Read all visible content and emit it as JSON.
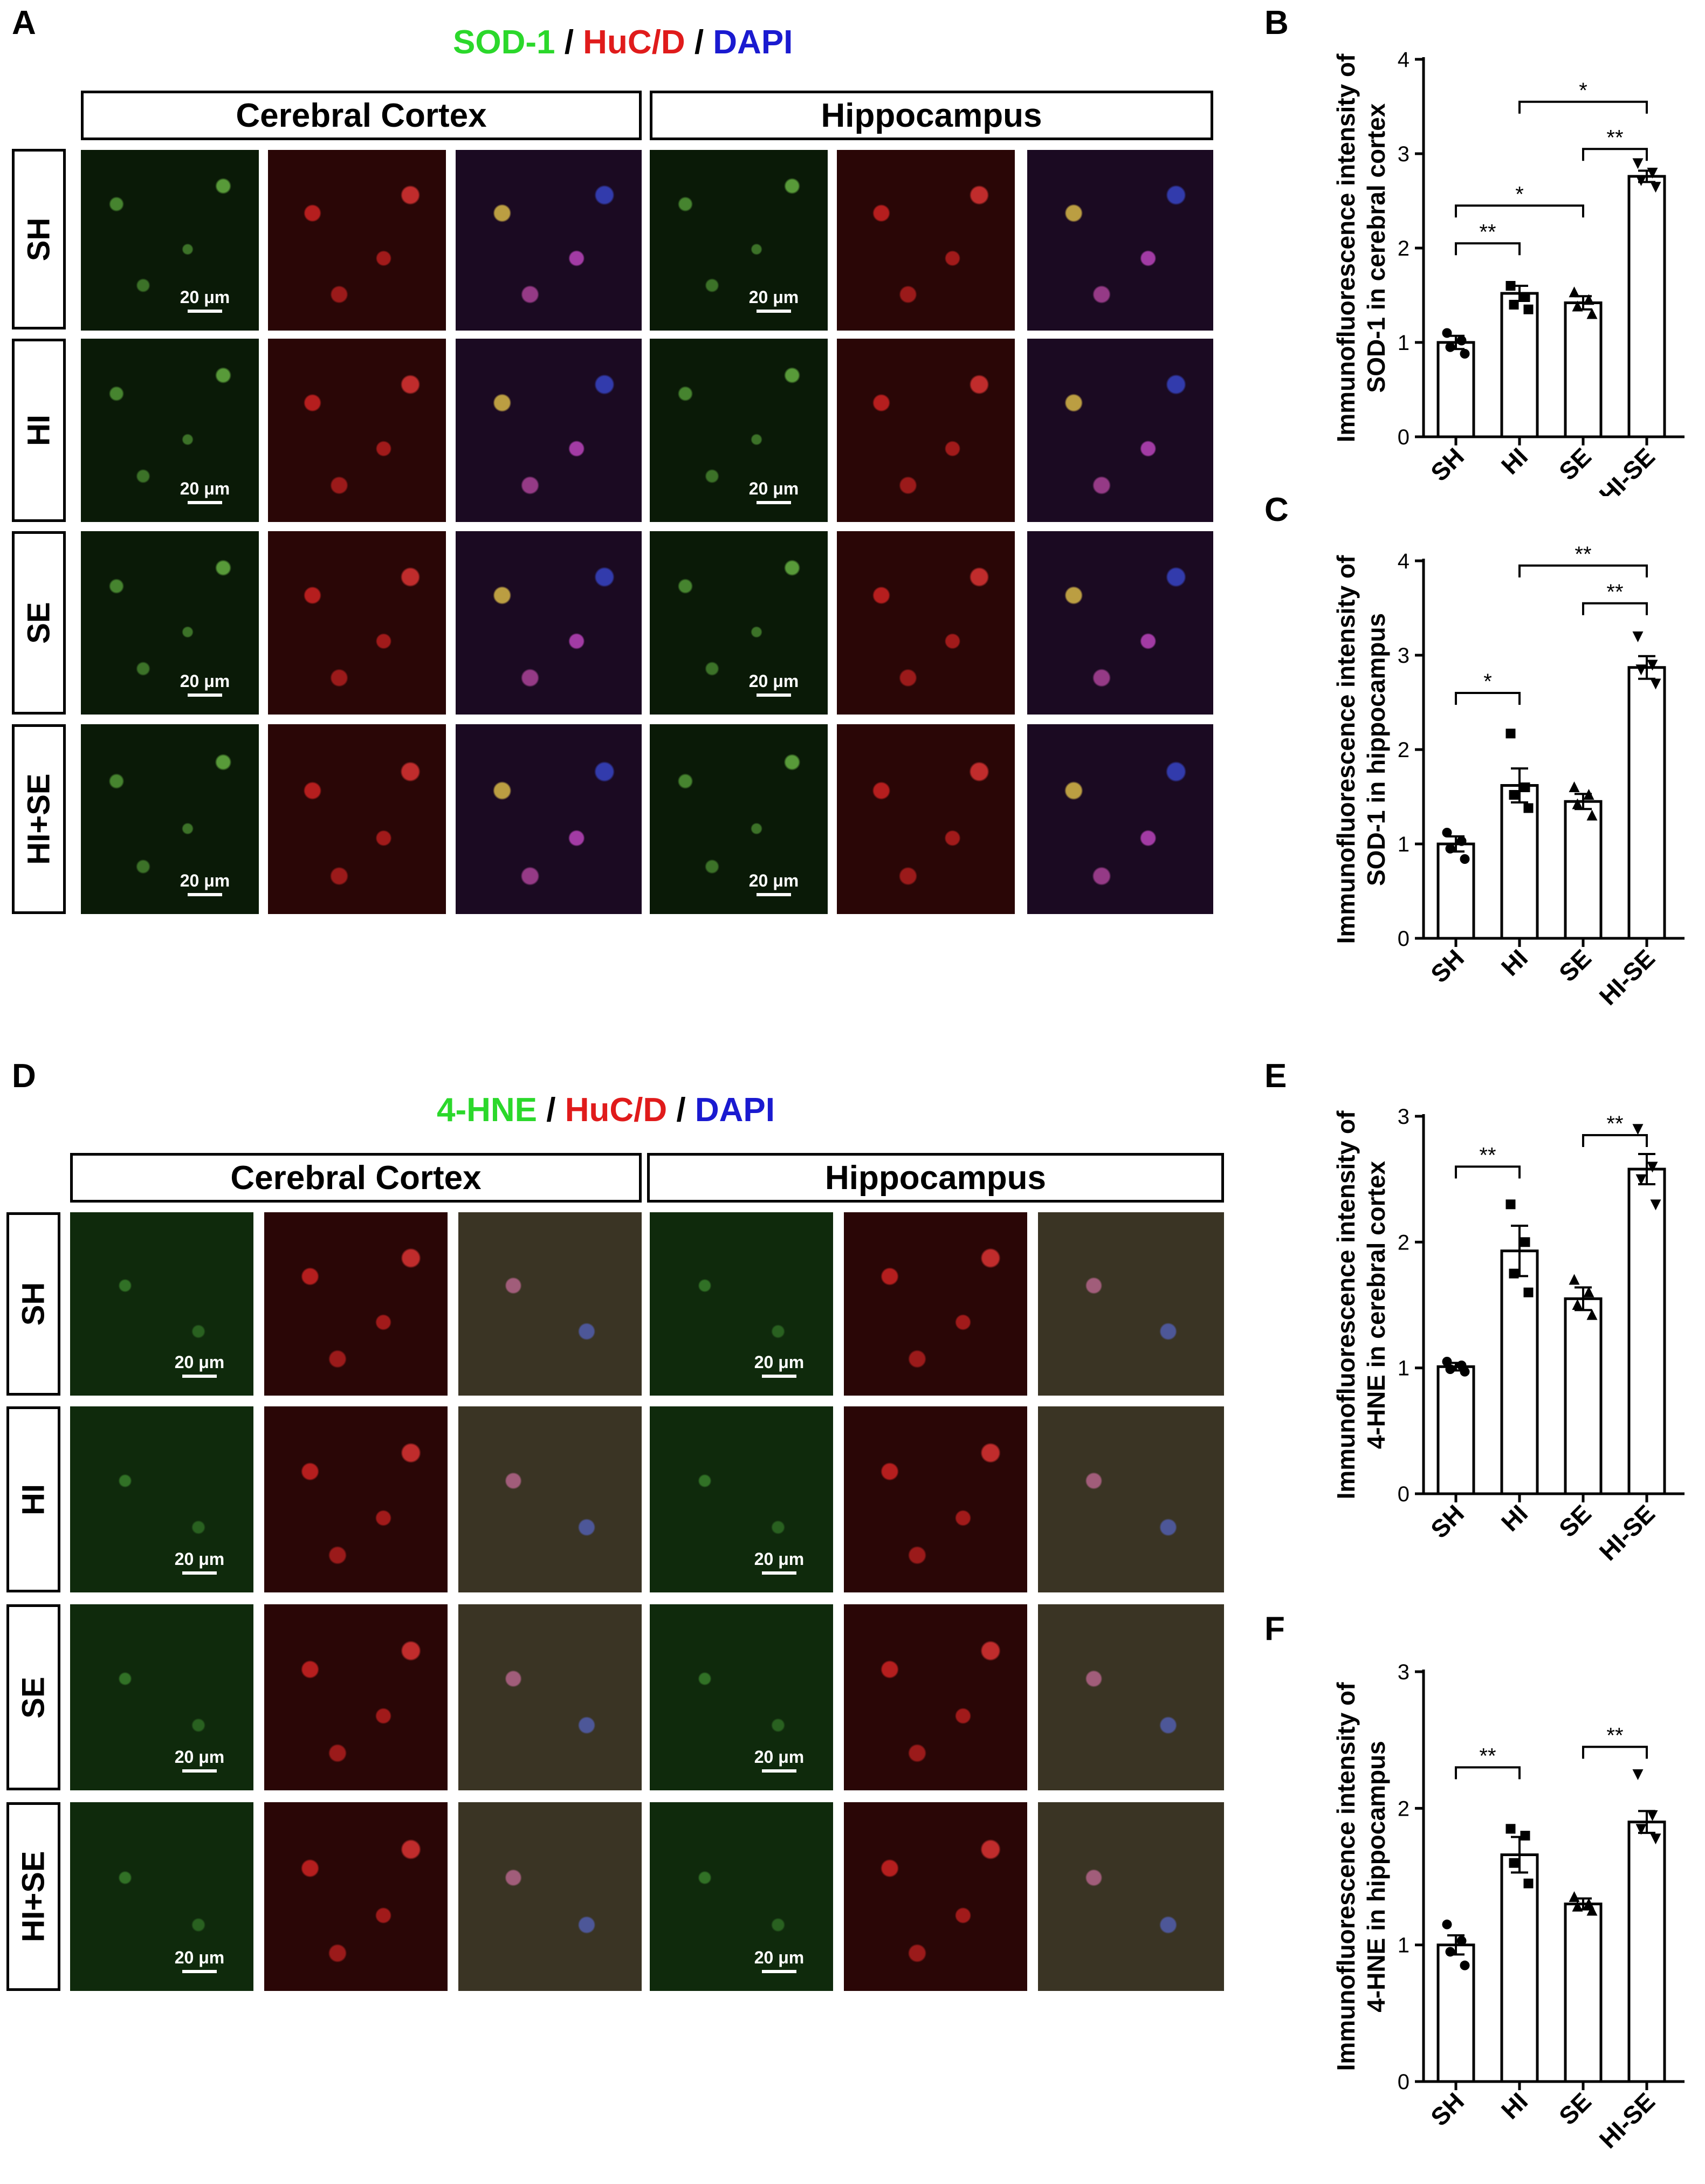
{
  "panels": {
    "A": "A",
    "B": "B",
    "C": "C",
    "D": "D",
    "E": "E",
    "F": "F"
  },
  "top_block": {
    "stain_title": [
      {
        "text": "SOD-1",
        "color": "#2bd82b"
      },
      {
        "text": " / ",
        "color": "#000000"
      },
      {
        "text": "HuC/D",
        "color": "#e01b1b"
      },
      {
        "text": " / ",
        "color": "#000000"
      },
      {
        "text": "DAPI",
        "color": "#1a1ad0"
      }
    ],
    "regions": [
      "Cerebral Cortex",
      "Hippocampus"
    ],
    "rows": [
      "SH",
      "HI",
      "SE",
      "HI+SE"
    ],
    "scale_label": "20 μm"
  },
  "bottom_block": {
    "stain_title": [
      {
        "text": "4-HNE",
        "color": "#2bd82b"
      },
      {
        "text": " / ",
        "color": "#000000"
      },
      {
        "text": "HuC/D",
        "color": "#e01b1b"
      },
      {
        "text": " / ",
        "color": "#000000"
      },
      {
        "text": "DAPI",
        "color": "#1a1ad0"
      }
    ],
    "regions": [
      "Cerebral Cortex",
      "Hippocampus"
    ],
    "rows": [
      "SH",
      "HI",
      "SE",
      "HI+SE"
    ],
    "scale_label": "20 μm"
  },
  "chart_data": [
    {
      "id": "B",
      "type": "bar",
      "ylabel_lines": [
        "Immunofluorescence intensity of",
        "SOD-1 in cerebral cortex"
      ],
      "categories": [
        "SH",
        "HI",
        "SE",
        "HI-SE"
      ],
      "values": [
        1.0,
        1.52,
        1.42,
        2.76
      ],
      "sem": [
        0.07,
        0.08,
        0.07,
        0.06
      ],
      "points": [
        [
          1.1,
          1.02,
          0.95,
          0.88
        ],
        [
          1.6,
          1.48,
          1.4,
          1.35
        ],
        [
          1.53,
          1.45,
          1.38,
          1.3
        ],
        [
          2.9,
          2.8,
          2.72,
          2.65
        ]
      ],
      "markers": [
        "circle",
        "square",
        "triangle",
        "triangle-down"
      ],
      "ylim": [
        0,
        4
      ],
      "yticks": [
        0,
        1,
        2,
        3,
        4
      ],
      "sig": [
        {
          "from": 0,
          "to": 1,
          "y": 2.05,
          "label": "**"
        },
        {
          "from": 0,
          "to": 2,
          "y": 2.45,
          "label": "*"
        },
        {
          "from": 1,
          "to": 3,
          "y": 3.55,
          "label": "*"
        },
        {
          "from": 2,
          "to": 3,
          "y": 3.05,
          "label": "**"
        }
      ]
    },
    {
      "id": "C",
      "type": "bar",
      "ylabel_lines": [
        "Immunofluorescence intensity of",
        "SOD-1 in hippocampus"
      ],
      "categories": [
        "SH",
        "HI",
        "SE",
        "HI-SE"
      ],
      "values": [
        1.0,
        1.62,
        1.45,
        2.87
      ],
      "sem": [
        0.08,
        0.18,
        0.08,
        0.12
      ],
      "points": [
        [
          1.12,
          1.03,
          0.95,
          0.84
        ],
        [
          2.17,
          1.6,
          1.52,
          1.38
        ],
        [
          1.6,
          1.52,
          1.42,
          1.3
        ],
        [
          3.2,
          2.9,
          2.85,
          2.7
        ]
      ],
      "markers": [
        "circle",
        "square",
        "triangle",
        "triangle-down"
      ],
      "ylim": [
        0,
        4
      ],
      "yticks": [
        0,
        1,
        2,
        3,
        4
      ],
      "sig": [
        {
          "from": 0,
          "to": 1,
          "y": 2.6,
          "label": "*"
        },
        {
          "from": 1,
          "to": 3,
          "y": 3.95,
          "label": "**"
        },
        {
          "from": 2,
          "to": 3,
          "y": 3.55,
          "label": "**"
        }
      ]
    },
    {
      "id": "E",
      "type": "bar",
      "ylabel_lines": [
        "Immunofluorescence intensity of",
        "4-HNE in cerebral cortex"
      ],
      "categories": [
        "SH",
        "HI",
        "SE",
        "HI-SE"
      ],
      "values": [
        1.01,
        1.93,
        1.55,
        2.58
      ],
      "sem": [
        0.03,
        0.2,
        0.09,
        0.12
      ],
      "points": [
        [
          1.05,
          1.02,
          0.99,
          0.97
        ],
        [
          2.3,
          2.0,
          1.75,
          1.6
        ],
        [
          1.7,
          1.6,
          1.5,
          1.42
        ],
        [
          2.9,
          2.6,
          2.5,
          2.3
        ]
      ],
      "markers": [
        "circle",
        "square",
        "triangle",
        "triangle-down"
      ],
      "ylim": [
        0,
        3
      ],
      "yticks": [
        0,
        1,
        2,
        3
      ],
      "sig": [
        {
          "from": 0,
          "to": 1,
          "y": 2.6,
          "label": "**"
        },
        {
          "from": 2,
          "to": 3,
          "y": 2.85,
          "label": "**"
        }
      ]
    },
    {
      "id": "F",
      "type": "bar",
      "ylabel_lines": [
        "Immunofluorescence intensity of",
        "4-HNE in hippocampus"
      ],
      "categories": [
        "SH",
        "HI",
        "SE",
        "HI-SE"
      ],
      "values": [
        1.0,
        1.66,
        1.3,
        1.9
      ],
      "sem": [
        0.07,
        0.13,
        0.04,
        0.08
      ],
      "points": [
        [
          1.15,
          1.03,
          0.95,
          0.85
        ],
        [
          1.85,
          1.8,
          1.6,
          1.45
        ],
        [
          1.35,
          1.3,
          1.28,
          1.25
        ],
        [
          2.25,
          1.95,
          1.85,
          1.78
        ]
      ],
      "markers": [
        "circle",
        "square",
        "triangle",
        "triangle-down"
      ],
      "ylim": [
        0,
        3
      ],
      "yticks": [
        0,
        1,
        2,
        3
      ],
      "sig": [
        {
          "from": 0,
          "to": 1,
          "y": 2.3,
          "label": "**"
        },
        {
          "from": 2,
          "to": 3,
          "y": 2.45,
          "label": "**"
        }
      ]
    }
  ]
}
